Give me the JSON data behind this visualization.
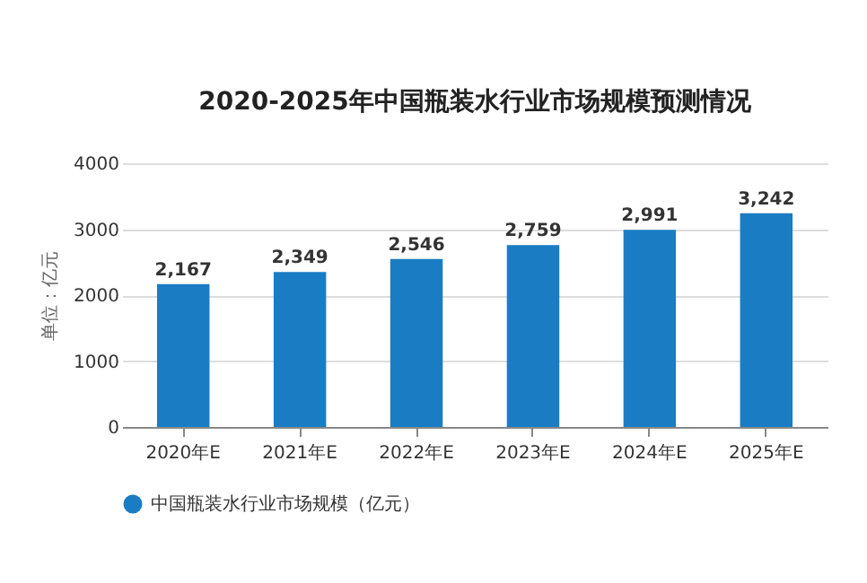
{
  "chart_data": {
    "type": "bar",
    "title": "2020-2025年中国瓶装水行业市场规模预测情况",
    "ylabel": "单位：亿元",
    "categories": [
      "2020年E",
      "2021年E",
      "2022年E",
      "2023年E",
      "2024年E",
      "2025年E"
    ],
    "series": [
      {
        "name": "中国瓶装水行业市场规模（亿元）",
        "color": "#1a7dc4",
        "values": [
          2167,
          2349,
          2546,
          2759,
          2991,
          3242
        ],
        "value_labels": [
          "2,167",
          "2,349",
          "2,546",
          "2,759",
          "2,991",
          "3,242"
        ]
      }
    ],
    "ylim": [
      0,
      4000
    ],
    "yticks": [
      0,
      1000,
      2000,
      3000,
      4000
    ],
    "grid": "y",
    "legend": "bottom"
  }
}
